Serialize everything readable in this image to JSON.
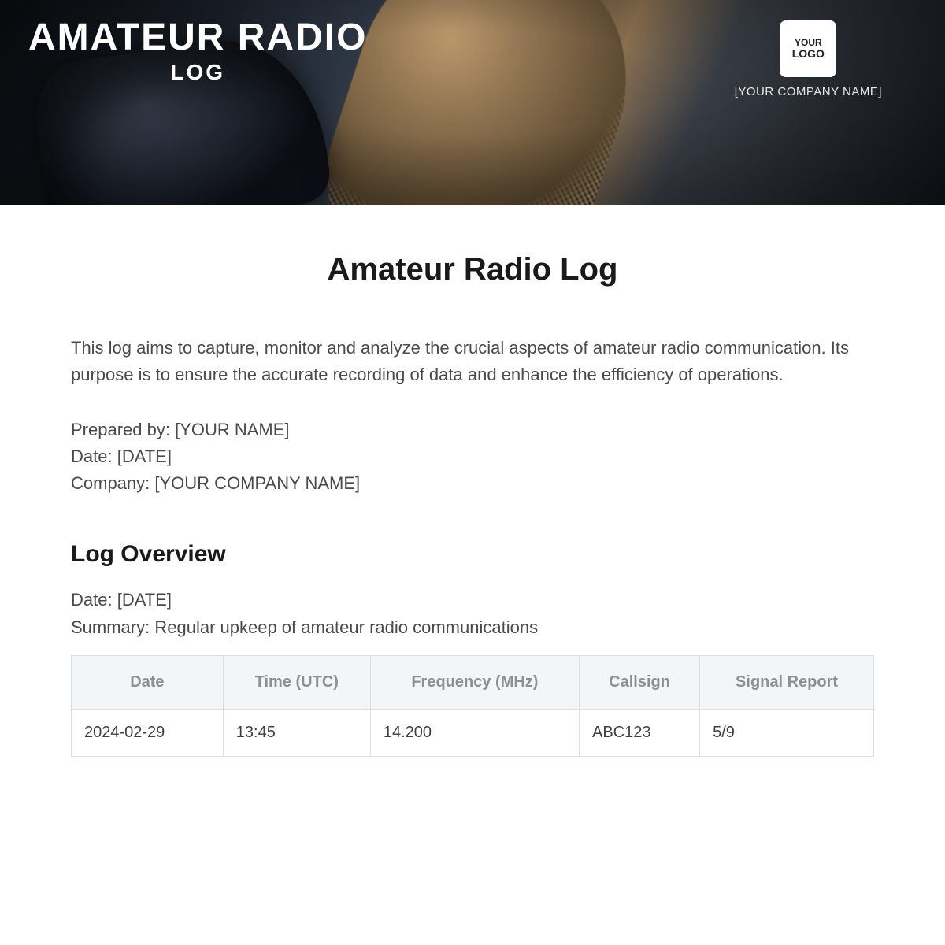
{
  "hero": {
    "title_line1": "AMATEUR RADIO",
    "title_line2": "LOG",
    "logo_text_line1": "YOUR",
    "logo_text_line2": "LOGO",
    "company_placeholder": "[YOUR COMPANY NAME]"
  },
  "document": {
    "title": "Amateur Radio Log",
    "intro": "This log aims to capture, monitor and analyze the crucial aspects of amateur radio communication. Its purpose is to ensure the accurate recording of data and enhance the efficiency of operations.",
    "prepared_by_label": "Prepared by: ",
    "prepared_by_value": "[YOUR NAME]",
    "date_label": "Date: ",
    "date_value": "[DATE]",
    "company_label": "Company: ",
    "company_value": "[YOUR COMPANY NAME]"
  },
  "overview": {
    "heading": "Log Overview",
    "date_label": "Date: ",
    "date_value": "[DATE]",
    "summary_label": "Summary: ",
    "summary_value": "Regular upkeep of amateur radio communications"
  },
  "table": {
    "columns": [
      "Date",
      "Time (UTC)",
      "Frequency (MHz)",
      "Callsign",
      "Signal Report"
    ],
    "rows": [
      [
        "2024-02-29",
        "13:45",
        "14.200",
        "ABC123",
        "5/9"
      ]
    ],
    "header_bg": "#f4f5f6",
    "header_text_color": "#8c8f93",
    "border_color": "#dcdee0",
    "cell_text_color": "#3f3f3f"
  },
  "colors": {
    "page_bg": "#ffffff",
    "body_text": "#4a4a4a",
    "heading_text": "#1a1a1a"
  },
  "typography": {
    "doc_title_size_pt": 30,
    "section_title_size_pt": 22,
    "body_size_pt": 16
  }
}
